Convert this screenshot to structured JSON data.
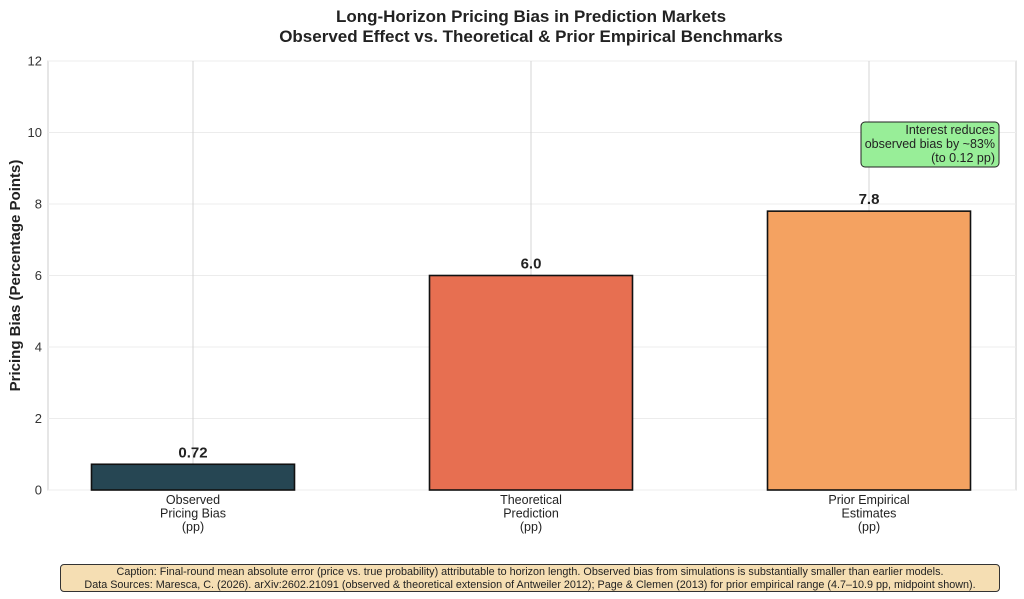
{
  "chart_data": {
    "type": "bar",
    "title": "Long-Horizon Pricing Bias in Prediction Markets",
    "subtitle": "Observed Effect vs. Theoretical & Prior Empirical Benchmarks",
    "ylabel": "Pricing Bias (Percentage Points)",
    "xlabel": "",
    "ylim": [
      0,
      12
    ],
    "yticks": [
      0,
      2,
      4,
      6,
      8,
      10,
      12
    ],
    "grid": true,
    "categories": [
      [
        "Observed",
        "Pricing Bias",
        "(pp)"
      ],
      [
        "Theoretical",
        "Prediction",
        "(pp)"
      ],
      [
        "Prior Empirical",
        "Estimates",
        "(pp)"
      ]
    ],
    "values": [
      0.72,
      6.0,
      7.8
    ],
    "value_labels": [
      "0.72",
      "6.0",
      "7.8"
    ],
    "colors": [
      "#264653",
      "#e76f51",
      "#f4a261"
    ],
    "annotation": {
      "lines": [
        "Interest reduces",
        "observed bias by ~83%",
        "(to 0.12 pp)"
      ],
      "background": "#98ee98",
      "placement": "top-right"
    }
  },
  "caption": {
    "line1": "Caption: Final-round mean absolute error (price vs. true probability) attributable to horizon length. Observed bias from simulations is substantially smaller than earlier models.",
    "line2": "Data Sources: Maresca, C. (2026). arXiv:2602.21091 (observed & theoretical extension of Antweiler 2012); Page & Clemen (2013) for prior empirical range (4.7–10.9 pp, midpoint shown)."
  }
}
